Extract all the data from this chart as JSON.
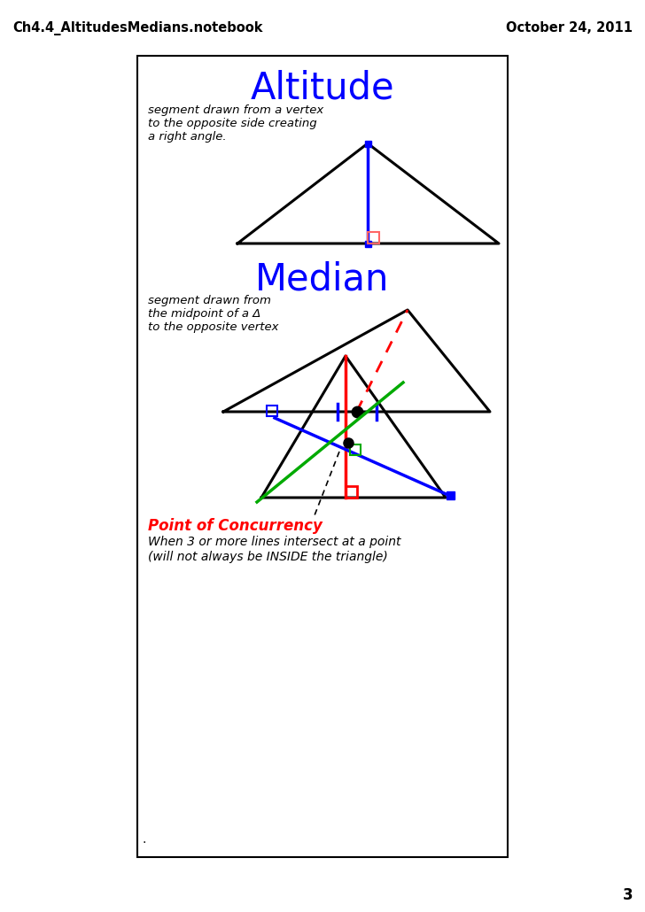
{
  "page_title_left": "Ch4.4_AltitudesMedians.notebook",
  "page_title_right": "October 24, 2011",
  "page_number": "3",
  "bg_color": "#ffffff",
  "title1": "Altitude",
  "title2": "Median",
  "title_color": "#0000ff",
  "desc1_line1": "segment drawn from a vertex",
  "desc1_line2": "to the opposite side creating",
  "desc1_line3": "a right angle.",
  "desc2_line1": "segment drawn from",
  "desc2_line2": "the midpoint of a Δ",
  "desc2_line3": "to the opposite vertex",
  "poc_title": "Point of Concurrency",
  "poc_title_color": "#ff0000",
  "poc_desc1": "When 3 or more lines intersect at a point",
  "poc_desc2": "(will not always be INSIDE the triangle)",
  "triangle_color": "#000000",
  "altitude_color": "#0000ff",
  "right_angle_color": "#ff6666",
  "median_color": "#ff0000",
  "tick_color": "#0000ff",
  "green_color": "#00aa00",
  "red_color": "#ff0000",
  "blue_color": "#0000ff"
}
